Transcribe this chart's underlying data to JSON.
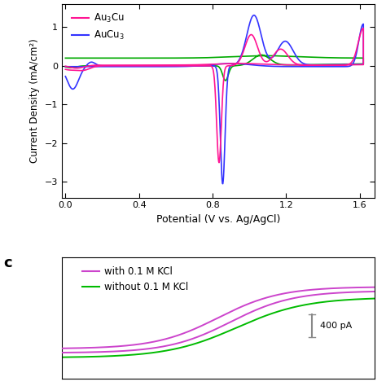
{
  "top_panel": {
    "xlim": [
      -0.02,
      1.68
    ],
    "ylim": [
      -3.4,
      1.6
    ],
    "xlabel": "Potential (V vs. Ag/AgCl)",
    "ylabel": "Current Density (mA/cm²)",
    "xticks": [
      0.0,
      0.4,
      0.8,
      1.2,
      1.6
    ],
    "yticks": [
      -3,
      -2,
      -1,
      0,
      1
    ],
    "colors": {
      "Au3Cu": "#FF1493",
      "AuCu3": "#3333FF",
      "AuCu": "#00AA00"
    }
  },
  "bottom_panel": {
    "colors": {
      "with": "#CC44CC",
      "without": "#00BB00"
    },
    "scalebar_label": "400 pA",
    "label": "c"
  },
  "background_color": "#FFFFFF",
  "text_color": "#000000"
}
